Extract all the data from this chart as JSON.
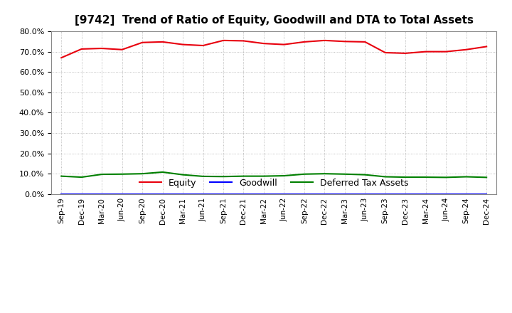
{
  "title": "[9742]  Trend of Ratio of Equity, Goodwill and DTA to Total Assets",
  "x_labels": [
    "Sep-19",
    "Dec-19",
    "Mar-20",
    "Jun-20",
    "Sep-20",
    "Dec-20",
    "Mar-21",
    "Jun-21",
    "Sep-21",
    "Dec-21",
    "Mar-22",
    "Jun-22",
    "Sep-22",
    "Dec-22",
    "Mar-23",
    "Jun-23",
    "Sep-23",
    "Dec-23",
    "Mar-24",
    "Jun-24",
    "Sep-24",
    "Dec-24"
  ],
  "equity": [
    0.67,
    0.713,
    0.716,
    0.71,
    0.745,
    0.748,
    0.735,
    0.73,
    0.755,
    0.753,
    0.74,
    0.735,
    0.748,
    0.755,
    0.75,
    0.748,
    0.695,
    0.692,
    0.7,
    0.7,
    0.71,
    0.725
  ],
  "goodwill": [
    0.001,
    0.001,
    0.001,
    0.001,
    0.001,
    0.001,
    0.001,
    0.001,
    0.001,
    0.001,
    0.001,
    0.001,
    0.001,
    0.001,
    0.001,
    0.001,
    0.001,
    0.001,
    0.001,
    0.001,
    0.001,
    0.001
  ],
  "dta": [
    0.088,
    0.083,
    0.097,
    0.098,
    0.1,
    0.108,
    0.095,
    0.087,
    0.086,
    0.088,
    0.088,
    0.09,
    0.098,
    0.1,
    0.098,
    0.095,
    0.085,
    0.083,
    0.083,
    0.082,
    0.085,
    0.082
  ],
  "equity_color": "#e8000d",
  "goodwill_color": "#0000ff",
  "dta_color": "#008000",
  "ylim": [
    0.0,
    0.8
  ],
  "yticks": [
    0.0,
    0.1,
    0.2,
    0.3,
    0.4,
    0.5,
    0.6,
    0.7,
    0.8
  ],
  "background_color": "#ffffff",
  "grid_color": "#aaaaaa",
  "title_fontsize": 11,
  "legend_labels": [
    "Equity",
    "Goodwill",
    "Deferred Tax Assets"
  ]
}
